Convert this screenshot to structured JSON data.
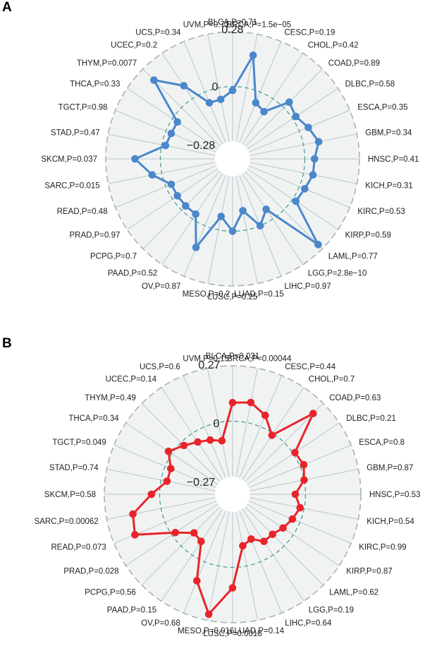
{
  "figure": {
    "panels": [
      "A",
      "B"
    ]
  },
  "chart_data": [
    {
      "type": "radar",
      "panel": "A",
      "color": "#4a87cb",
      "rlim": [
        -0.28,
        0.28
      ],
      "tick_labels": [
        "0.28",
        "0",
        "−0.28"
      ],
      "categories": [
        "BLCA",
        "BRCA",
        "CESC",
        "CHOL",
        "COAD",
        "DLBC",
        "ESCA",
        "GBM",
        "HNSC",
        "KICH",
        "KIRC",
        "KIRP",
        "LAML",
        "LGG",
        "LIHC",
        "LUAD",
        "LUSC",
        "MESO",
        "OV",
        "PAAD",
        "PCPG",
        "PRAD",
        "READ",
        "SARC",
        "SKCM",
        "STAD",
        "TGCT",
        "THCA",
        "THYM",
        "UCEC",
        "UCS",
        "UVM"
      ],
      "labels": [
        "BLCA,P=0.71",
        "BRCA,P=1.5e−05",
        "CESC,P=0.19",
        "CHOL,P=0.42",
        "COAD,P=0.89",
        "DLBC,P=0.58",
        "ESCA,P=0.35",
        "GBM,P=0.34",
        "HNSC,P=0.41",
        "KICH,P=0.31",
        "KIRC,P=0.53",
        "KIRP,P=0.59",
        "LAML,P=0.77",
        "LGG,P=2.8e−10",
        "LIHC,P=0.97",
        "LUAD,P=0.15",
        "LUSC,P=0.25",
        "MESO,P=0.2",
        "OV,P=0.87",
        "PAAD,P=0.52",
        "PCPG,P=0.7",
        "PRAD,P=0.97",
        "READ,P=0.48",
        "SARC,P=0.015",
        "SKCM,P=0.037",
        "STAD,P=0.47",
        "TGCT,P=0.98",
        "THCA,P=0.33",
        "THYM,P=0.0077",
        "UCEC,P=0.2",
        "UCS,P=0.34",
        "UVM,P=0.71"
      ],
      "values": [
        -0.02,
        0.17,
        -0.06,
        -0.08,
        0.04,
        0.02,
        0.05,
        0.08,
        0.05,
        0.05,
        0.03,
        0.02,
        0.25,
        -0.06,
        0.0,
        -0.1,
        0.0,
        -0.07,
        0.12,
        -0.03,
        -0.03,
        -0.03,
        -0.03,
        0.05,
        0.13,
        -0.02,
        -0.03,
        -0.03,
        0.2,
        0.08,
        -0.06,
        -0.06
      ]
    },
    {
      "type": "radar",
      "panel": "B",
      "color": "#e8242a",
      "rlim": [
        -0.27,
        0.27
      ],
      "tick_labels": [
        "0.27",
        "0",
        "−0.27"
      ],
      "categories": [
        "BLCA",
        "BRCA",
        "CESC",
        "CHOL",
        "COAD",
        "DLBC",
        "ESCA",
        "GBM",
        "HNSC",
        "KICH",
        "KIRC",
        "KIRP",
        "LAML",
        "LGG",
        "LIHC",
        "LUAD",
        "LUSC",
        "MESO",
        "OV",
        "PAAD",
        "PCPG",
        "PRAD",
        "READ",
        "SARC",
        "SKCM",
        "STAD",
        "TGCT",
        "THCA",
        "THYM",
        "UCEC",
        "UCS",
        "UVM"
      ],
      "labels": [
        "BLCA,P=0.031",
        "BRCA,P=0.00044",
        "CESC,P=0.44",
        "CHOL,P=0.7",
        "COAD,P=0.63",
        "DLBC,P=0.21",
        "ESCA,P=0.8",
        "GBM,P=0.87",
        "HNSC,P=0.53",
        "KICH,P=0.54",
        "KIRC,P=0.99",
        "KIRP,P=0.87",
        "LAML,P=0.62",
        "LGG,P=0.19",
        "LIHC,P=0.64",
        "LUAD,P=0.14",
        "LUSC,P=0.0018",
        "MESO,P=0.016",
        "OV,P=0.68",
        "PAAD,P=0.15",
        "PCPG,P=0.56",
        "PRAD,P=0.028",
        "READ,P=0.073",
        "SARC,P=0.00062",
        "SKCM,P=0.58",
        "STAD,P=0.74",
        "TGCT,P=0.049",
        "THCA,P=0.34",
        "THYM,P=0.49",
        "UCEC,P=0.14",
        "UCS,P=0.6",
        "UVM,P=0.15"
      ],
      "values": [
        0.09,
        0.1,
        0.06,
        -0.01,
        0.2,
        0.01,
        0.02,
        0.0,
        -0.05,
        -0.02,
        -0.04,
        -0.06,
        -0.08,
        -0.08,
        -0.12,
        -0.1,
        0.1,
        0.24,
        0.1,
        -0.08,
        -0.09,
        -0.02,
        0.16,
        0.14,
        0.04,
        -0.03,
        -0.03,
        0.02,
        -0.02,
        -0.05,
        -0.07,
        -0.09
      ]
    }
  ]
}
